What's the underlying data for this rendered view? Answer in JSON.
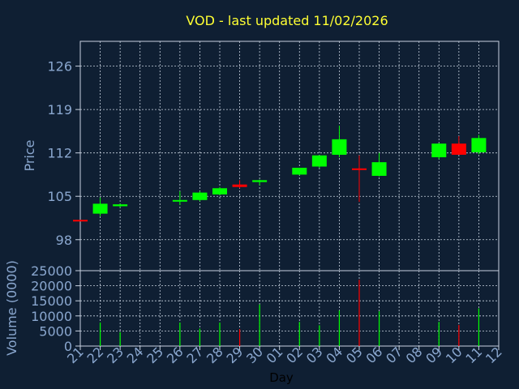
{
  "title": "VOD - last updated 11/02/2026",
  "colors": {
    "background": "#0f1f33",
    "title": "#ffff33",
    "axis_text": "#8aa7cf",
    "grid": "#c8d2e0",
    "frame": "#c8d2e0",
    "up": "#00ff00",
    "down": "#ff0000"
  },
  "chart_data": [
    {
      "type": "candlestick",
      "title": "VOD - last updated 11/02/2026",
      "ylabel": "Price",
      "ylim": [
        93,
        130
      ],
      "yticks": [
        98,
        105,
        112,
        119,
        126
      ],
      "grid": true,
      "categories": [
        "21",
        "22",
        "23",
        "24",
        "25",
        "26",
        "27",
        "28",
        "29",
        "30",
        "01",
        "02",
        "03",
        "04",
        "05",
        "06",
        "07",
        "08",
        "09",
        "10",
        "11",
        "12"
      ],
      "candles": [
        {
          "x": "21",
          "open": 101.2,
          "high": 101.2,
          "low": 101.0,
          "close": 101.0
        },
        {
          "x": "22",
          "open": 102.2,
          "high": 104.8,
          "low": 101.8,
          "close": 103.8
        },
        {
          "x": "23",
          "open": 103.4,
          "high": 103.8,
          "low": 103.2,
          "close": 103.7
        },
        {
          "x": "26",
          "open": 104.2,
          "high": 105.8,
          "low": 103.6,
          "close": 104.4
        },
        {
          "x": "27",
          "open": 104.4,
          "high": 105.8,
          "low": 104.2,
          "close": 105.6
        },
        {
          "x": "28",
          "open": 105.3,
          "high": 106.5,
          "low": 105.2,
          "close": 106.3
        },
        {
          "x": "29",
          "open": 106.9,
          "high": 107.6,
          "low": 106.3,
          "close": 106.5
        },
        {
          "x": "30",
          "open": 107.3,
          "high": 107.7,
          "low": 106.8,
          "close": 107.6
        },
        {
          "x": "02",
          "open": 108.5,
          "high": 109.6,
          "low": 108.4,
          "close": 109.6
        },
        {
          "x": "03",
          "open": 109.8,
          "high": 111.6,
          "low": 109.6,
          "close": 111.6
        },
        {
          "x": "04",
          "open": 111.7,
          "high": 116.4,
          "low": 111.3,
          "close": 114.2
        },
        {
          "x": "05",
          "open": 109.5,
          "high": 111.6,
          "low": 104.1,
          "close": 109.4
        },
        {
          "x": "06",
          "open": 108.3,
          "high": 112.0,
          "low": 108.2,
          "close": 110.5
        },
        {
          "x": "09",
          "open": 111.3,
          "high": 113.6,
          "low": 111.0,
          "close": 113.5
        },
        {
          "x": "10",
          "open": 113.5,
          "high": 114.7,
          "low": 111.7,
          "close": 111.7
        },
        {
          "x": "11",
          "open": 112.1,
          "high": 114.9,
          "low": 111.8,
          "close": 114.4
        }
      ]
    },
    {
      "type": "bar",
      "ylabel": "Volume (0000)",
      "xlabel": "Day",
      "ylim": [
        0,
        25000
      ],
      "yticks": [
        0,
        5000,
        10000,
        15000,
        20000,
        25000
      ],
      "categories": [
        "21",
        "22",
        "23",
        "24",
        "25",
        "26",
        "27",
        "28",
        "29",
        "30",
        "01",
        "02",
        "03",
        "04",
        "05",
        "06",
        "07",
        "08",
        "09",
        "10",
        "11",
        "12"
      ],
      "bars": [
        {
          "x": "22",
          "value": 7800,
          "direction": "up"
        },
        {
          "x": "23",
          "value": 4600,
          "direction": "up"
        },
        {
          "x": "26",
          "value": 7800,
          "direction": "up"
        },
        {
          "x": "27",
          "value": 5800,
          "direction": "up"
        },
        {
          "x": "28",
          "value": 7800,
          "direction": "up"
        },
        {
          "x": "29",
          "value": 5600,
          "direction": "down"
        },
        {
          "x": "30",
          "value": 13800,
          "direction": "up"
        },
        {
          "x": "02",
          "value": 8000,
          "direction": "up"
        },
        {
          "x": "03",
          "value": 6900,
          "direction": "up"
        },
        {
          "x": "04",
          "value": 11800,
          "direction": "up"
        },
        {
          "x": "05",
          "value": 22000,
          "direction": "down"
        },
        {
          "x": "06",
          "value": 11500,
          "direction": "up"
        },
        {
          "x": "09",
          "value": 8000,
          "direction": "up"
        },
        {
          "x": "10",
          "value": 7000,
          "direction": "down"
        },
        {
          "x": "11",
          "value": 12500,
          "direction": "up"
        }
      ]
    }
  ]
}
